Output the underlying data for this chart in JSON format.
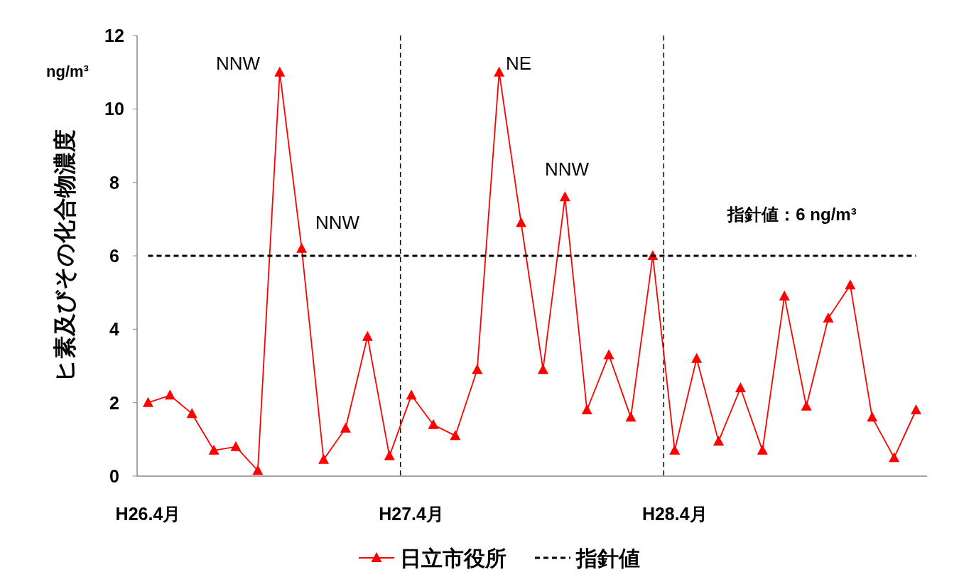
{
  "chart_data": {
    "type": "line",
    "ylabel": "ヒ素及びその化合物濃度",
    "categories": [
      "H26.4月",
      null,
      null,
      null,
      null,
      null,
      null,
      null,
      null,
      null,
      null,
      null,
      "H27.4月",
      null,
      null,
      null,
      null,
      null,
      null,
      null,
      null,
      null,
      null,
      null,
      "H28.4月",
      null,
      null,
      null,
      null,
      null,
      null,
      null,
      null,
      null,
      null,
      null
    ],
    "ylim": [
      0,
      12
    ],
    "yticks": [
      0,
      2,
      4,
      6,
      8,
      10,
      12
    ],
    "series": [
      {
        "name": "日立市役所",
        "color": "#ff0000",
        "marker": "triangle",
        "line_style": "solid",
        "values": [
          2.0,
          2.2,
          1.7,
          0.7,
          0.8,
          0.15,
          11.0,
          6.2,
          0.45,
          1.3,
          3.8,
          0.55,
          2.2,
          1.4,
          1.1,
          2.9,
          11.0,
          6.9,
          2.9,
          7.6,
          1.8,
          3.3,
          1.6,
          6.0,
          0.7,
          3.2,
          0.95,
          2.4,
          0.7,
          4.9,
          1.9,
          4.3,
          5.2,
          1.6,
          0.5,
          1.8
        ]
      },
      {
        "name": "指針値",
        "color": "#000000",
        "marker": "none",
        "line_style": "dashed",
        "values": [
          6,
          6,
          6,
          6,
          6,
          6,
          6,
          6,
          6,
          6,
          6,
          6,
          6,
          6,
          6,
          6,
          6,
          6,
          6,
          6,
          6,
          6,
          6,
          6,
          6,
          6,
          6,
          6,
          6,
          6,
          6,
          6,
          6,
          6,
          6,
          6
        ]
      }
    ],
    "ref_lines": [
      {
        "axis": "x",
        "value": "H27.4月",
        "color": "#000000",
        "line_style": "dashed"
      },
      {
        "axis": "x",
        "value": "H28.4月",
        "color": "#000000",
        "line_style": "dashed"
      }
    ],
    "annotations": [
      "ng/m³",
      "指針値：6 ng/m³",
      "NNW",
      "NNW",
      "NE",
      "NNW"
    ],
    "legend": "bottom",
    "grid": false
  }
}
